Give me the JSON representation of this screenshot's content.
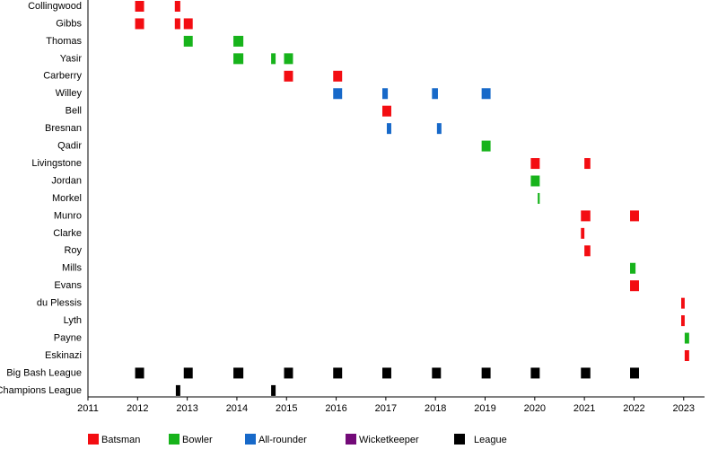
{
  "chart_data": {
    "type": "timeline",
    "categories": [
      "Collingwood",
      "Gibbs",
      "Thomas",
      "Yasir",
      "Carberry",
      "Willey",
      "Bell",
      "Bresnan",
      "Qadir",
      "Livingstone",
      "Jordan",
      "Morkel",
      "Munro",
      "Clarke",
      "Roy",
      "Mills",
      "Evans",
      "du Plessis",
      "Lyth",
      "Payne",
      "Eskinazi",
      "Big Bash League",
      "Champions League"
    ],
    "xlim": [
      2011,
      2023.42
    ],
    "xticks": [
      2011,
      2012,
      2013,
      2014,
      2015,
      2016,
      2017,
      2018,
      2019,
      2020,
      2021,
      2022,
      2023
    ],
    "series": [
      {
        "name": "Batsman",
        "color": "#f30d12",
        "values": [
          [
            [
              2011.95,
              2012.13
            ],
            [
              2012.75,
              2012.86
            ]
          ],
          [
            [
              2011.95,
              2012.13
            ],
            [
              2012.75,
              2012.86
            ],
            [
              2012.93,
              2013.11
            ]
          ],
          [],
          [],
          [
            [
              2014.95,
              2015.13
            ],
            [
              2015.94,
              2016.12
            ]
          ],
          [],
          [
            [
              2016.93,
              2017.11
            ]
          ],
          [],
          [],
          [
            [
              2019.92,
              2020.1
            ],
            [
              2021.0,
              2021.12
            ]
          ],
          [],
          [],
          [
            [
              2020.93,
              2021.12
            ],
            [
              2021.92,
              2022.1
            ]
          ],
          [
            [
              2020.93,
              2021.0
            ]
          ],
          [
            [
              2021.0,
              2021.12
            ]
          ],
          [],
          [
            [
              2021.92,
              2022.1
            ]
          ],
          [
            [
              2022.95,
              2023.02
            ]
          ],
          [
            [
              2022.95,
              2023.02
            ]
          ],
          [],
          [
            [
              2023.02,
              2023.11
            ]
          ],
          [],
          []
        ]
      },
      {
        "name": "Bowler",
        "color": "#17b31b",
        "values": [
          [],
          [],
          [
            [
              2012.93,
              2013.11
            ],
            [
              2013.93,
              2014.13
            ]
          ],
          [
            [
              2013.93,
              2014.13
            ],
            [
              2014.69,
              2014.78
            ],
            [
              2014.95,
              2015.13
            ]
          ],
          [],
          [],
          [],
          [],
          [
            [
              2018.93,
              2019.11
            ]
          ],
          [],
          [
            [
              2019.92,
              2020.1
            ]
          ],
          [
            [
              2020.06,
              2020.1
            ]
          ],
          [],
          [],
          [],
          [
            [
              2021.92,
              2022.03
            ]
          ],
          [],
          [],
          [],
          [
            [
              2023.02,
              2023.11
            ]
          ],
          [],
          [],
          []
        ]
      },
      {
        "name": "All-rounder",
        "color": "#1769c9",
        "values": [
          [],
          [],
          [],
          [],
          [],
          [
            [
              2015.94,
              2016.12
            ],
            [
              2016.93,
              2017.04
            ],
            [
              2017.93,
              2018.05
            ],
            [
              2018.93,
              2019.11
            ]
          ],
          [],
          [
            [
              2017.02,
              2017.11
            ],
            [
              2018.03,
              2018.12
            ]
          ],
          [],
          [],
          [],
          [],
          [],
          [],
          [],
          [],
          [],
          [],
          [],
          [],
          [],
          [],
          []
        ]
      },
      {
        "name": "Wicketkeeper",
        "color": "#730a78",
        "values": [
          [],
          [],
          [],
          [],
          [],
          [],
          [],
          [],
          [],
          [],
          [],
          [],
          [],
          [],
          [],
          [],
          [],
          [],
          [],
          [],
          [],
          [],
          []
        ]
      },
      {
        "name": "League",
        "color": "#000000",
        "values": [
          [],
          [],
          [],
          [],
          [],
          [],
          [],
          [],
          [],
          [],
          [],
          [],
          [],
          [],
          [],
          [],
          [],
          [],
          [],
          [],
          [],
          [
            [
              2011.95,
              2012.13
            ],
            [
              2012.93,
              2013.11
            ],
            [
              2013.93,
              2014.13
            ],
            [
              2014.95,
              2015.13
            ],
            [
              2015.94,
              2016.12
            ],
            [
              2016.93,
              2017.11
            ],
            [
              2017.93,
              2018.11
            ],
            [
              2018.93,
              2019.11
            ],
            [
              2019.92,
              2020.1
            ],
            [
              2020.93,
              2021.12
            ],
            [
              2021.92,
              2022.1
            ]
          ],
          [
            [
              2012.77,
              2012.86
            ],
            [
              2014.69,
              2014.78
            ]
          ]
        ]
      }
    ]
  }
}
